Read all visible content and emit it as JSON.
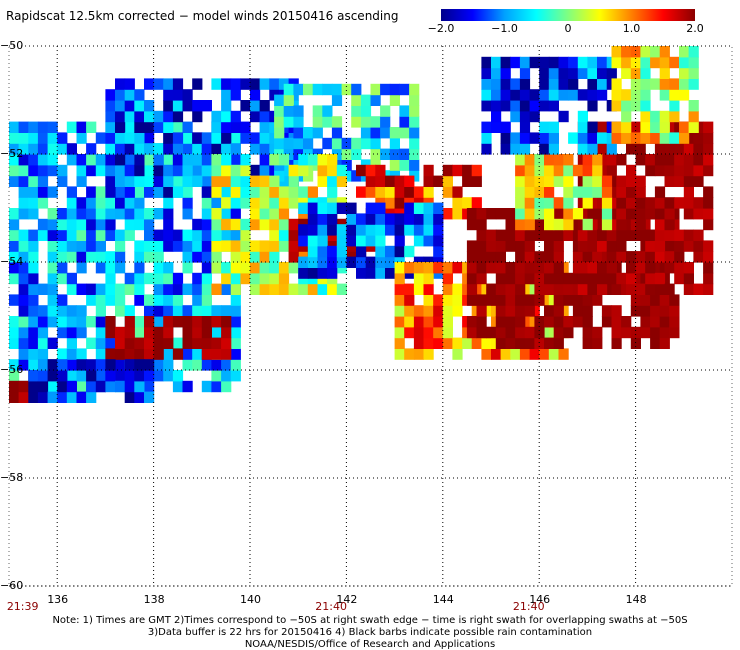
{
  "title": "Rapidscat 12.5km corrected − model winds 20150416 ascending",
  "colorbar": {
    "min": -2.0,
    "max": 2.0,
    "tick_labels": [
      "−2.0",
      "−1.0",
      "0",
      "1.0",
      "2.0"
    ],
    "tick_values": [
      -2.0,
      -1.0,
      0,
      1.0,
      2.0
    ],
    "colors": [
      "#00008b",
      "#0000ff",
      "#00a0ff",
      "#00ffff",
      "#80ff80",
      "#ffff00",
      "#ff8000",
      "#ff0000",
      "#8b0000"
    ]
  },
  "chart_data": {
    "type": "heatmap",
    "title": "Rapidscat 12.5km corrected − model winds 20150416 ascending",
    "xlim": [
      135,
      150
    ],
    "ylim": [
      -60,
      -50
    ],
    "x_ticks": [
      136,
      138,
      140,
      142,
      144,
      146,
      148
    ],
    "y_ticks": [
      -50,
      -52,
      -54,
      -56,
      -58,
      -60
    ],
    "x_tick_labels": [
      "136",
      "138",
      "140",
      "142",
      "144",
      "146",
      "148"
    ],
    "y_tick_labels": [
      "−50",
      "−52",
      "−54",
      "−56",
      "−58",
      "−60"
    ],
    "time_labels": [
      {
        "x": 135.1,
        "text": "21:39"
      },
      {
        "x": 141.5,
        "text": "21:40"
      },
      {
        "x": 145.6,
        "text": "21:40"
      }
    ],
    "grid": true,
    "value_range": [
      -2.0,
      2.0
    ],
    "regions": [
      {
        "lon": [
          135.0,
          139.8
        ],
        "lat": [
          -56.4,
          -51.5
        ],
        "mean": -0.9
      },
      {
        "lon": [
          137.0,
          141.0
        ],
        "lat": [
          -52.8,
          -50.6
        ],
        "mean": -1.3
      },
      {
        "lon": [
          140.5,
          143.5
        ],
        "lat": [
          -52.5,
          -50.8
        ],
        "mean": -0.6
      },
      {
        "lon": [
          139.2,
          142.0
        ],
        "lat": [
          -54.6,
          -52.0
        ],
        "mean": 0.2
      },
      {
        "lon": [
          140.8,
          142.5
        ],
        "lat": [
          -54.0,
          -53.3
        ],
        "mean": 1.9
      },
      {
        "lon": [
          142.2,
          144.8
        ],
        "lat": [
          -53.2,
          -52.2
        ],
        "mean": 1.3
      },
      {
        "lon": [
          141.0,
          144.0
        ],
        "lat": [
          -54.3,
          -53.0
        ],
        "mean": -1.2
      },
      {
        "lon": [
          143.0,
          146.5
        ],
        "lat": [
          -55.8,
          -54.0
        ],
        "mean": 0.9
      },
      {
        "lon": [
          144.5,
          148.8
        ],
        "lat": [
          -55.6,
          -53.0
        ],
        "mean": 2.0
      },
      {
        "lon": [
          146.8,
          149.5
        ],
        "lat": [
          -54.6,
          -51.5
        ],
        "mean": 1.9
      },
      {
        "lon": [
          145.5,
          147.5
        ],
        "lat": [
          -53.4,
          -52.0
        ],
        "mean": 0.6
      },
      {
        "lon": [
          144.8,
          147.5
        ],
        "lat": [
          -52.0,
          -50.3
        ],
        "mean": -1.3
      },
      {
        "lon": [
          147.5,
          149.3
        ],
        "lat": [
          -51.8,
          -50.0
        ],
        "mean": 0.4
      },
      {
        "lon": [
          137.0,
          139.5
        ],
        "lat": [
          -55.8,
          -55.0
        ],
        "mean": 1.9
      },
      {
        "lon": [
          135.0,
          135.6
        ],
        "lat": [
          -56.6,
          -56.1
        ],
        "mean": 1.9
      },
      {
        "lon": [
          135.4,
          138.0
        ],
        "lat": [
          -56.6,
          -55.9
        ],
        "mean": -1.6
      }
    ]
  },
  "notes": [
    "Note: 1) Times are GMT 2)Times correspond to −50S at right swath edge − time is right swath for overlapping swaths at −50S",
    "3)Data buffer is 22 hrs for 20150416 4) Black barbs indicate possible rain contamination",
    "NOAA/NESDIS/Office of Research and Applications"
  ]
}
